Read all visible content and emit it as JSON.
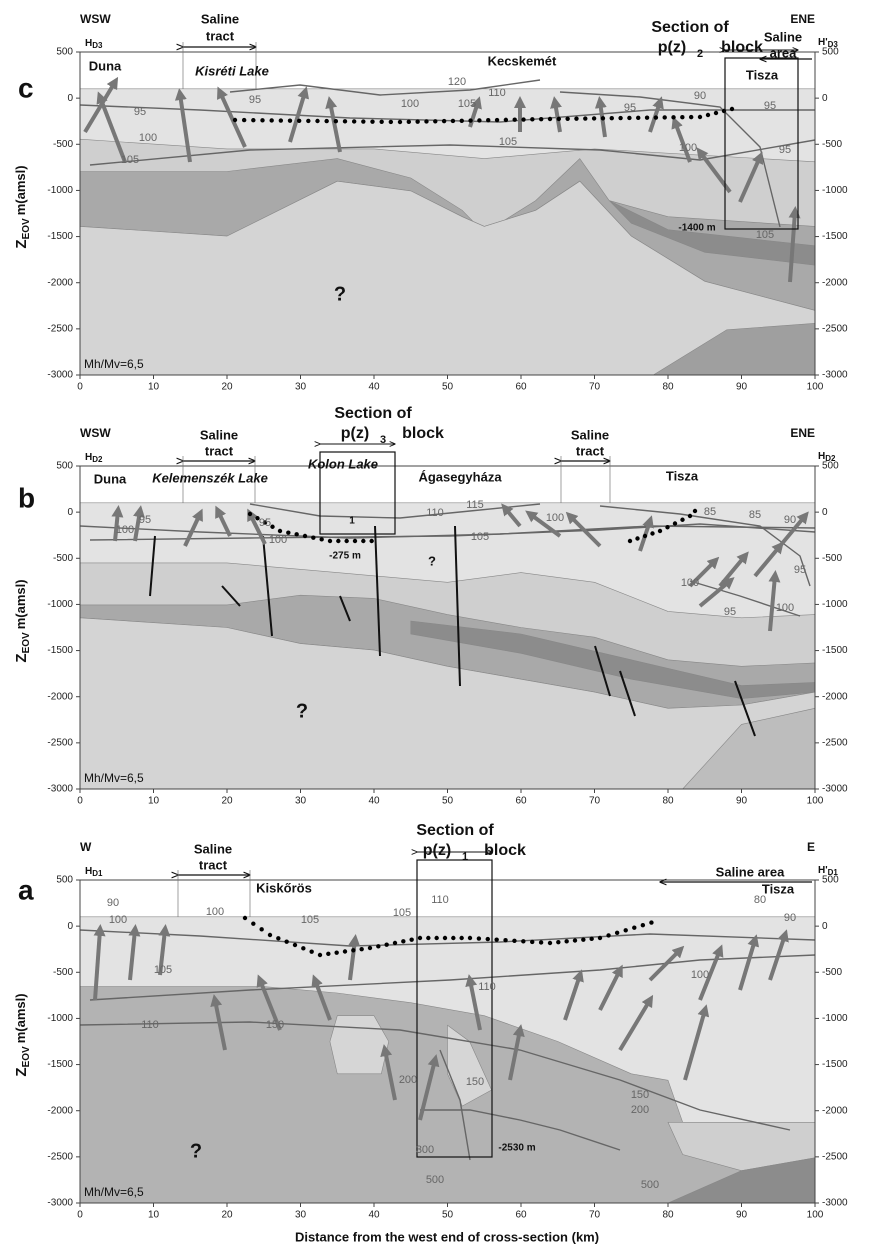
{
  "axes": {
    "xlim": [
      0,
      100
    ],
    "xticks": [
      0,
      10,
      20,
      30,
      40,
      50,
      60,
      70,
      80,
      90,
      100
    ],
    "ylim": [
      -3000,
      500
    ],
    "yticks": [
      -3000,
      -2500,
      -2000,
      -1500,
      -1000,
      -500,
      0,
      500
    ],
    "x_label": "Distance from the west end of cross-section (km)",
    "y_label": {
      "main": "Z",
      "sub": "EOV",
      "unit": "m(amsl)"
    }
  },
  "panels": [
    {
      "letter": "c",
      "left_end": "WSW",
      "right_end": "ENE",
      "left_h": {
        "main": "H",
        "sub": "D3"
      },
      "right_h": {
        "main": "H'",
        "sub": "D3"
      },
      "ratio": "Mh/Mv=6,5",
      "question": "?",
      "annotations": [
        "Duna",
        "Saline",
        "tract",
        "Kisréti Lake",
        "Kecskemét",
        "Section of",
        "p(z)",
        "2",
        "block",
        "Saline",
        "area",
        "Tisza",
        "-1400 m"
      ],
      "contours": [
        120,
        110,
        105,
        100,
        95,
        95,
        100,
        105,
        105,
        100,
        95,
        95,
        90,
        105,
        95
      ]
    },
    {
      "letter": "b",
      "left_end": "WSW",
      "right_end": "ENE",
      "left_h": {
        "main": "H",
        "sub": "D2"
      },
      "right_h": {
        "main": "H",
        "sub": "D2"
      },
      "ratio": "Mh/Mv=6,5",
      "question": "?",
      "annotations": [
        "Duna",
        "Saline",
        "tract",
        "Kelemenszék Lake",
        "Section of",
        "p(z)",
        "3",
        "block",
        "Kolon Lake",
        "Ágasegyháza",
        "Saline",
        "tract",
        "Tisza",
        "1",
        "-275 m",
        "?"
      ],
      "contours": [
        95,
        100,
        95,
        100,
        110,
        115,
        105,
        100,
        85,
        90,
        85,
        95,
        100,
        95,
        100
      ]
    },
    {
      "letter": "a",
      "left_end": "W",
      "right_end": "E",
      "left_h": {
        "main": "H",
        "sub": "D1"
      },
      "right_h": {
        "main": "H'",
        "sub": "D1"
      },
      "ratio": "Mh/Mv=6,5",
      "question": "?",
      "annotations": [
        "Saline",
        "tract",
        "Section of",
        "p(z)",
        "1",
        "block",
        "Kiskőrös",
        "Saline area",
        "Tisza",
        "-2530 m"
      ],
      "contours": [
        90,
        100,
        100,
        105,
        105,
        110,
        105,
        110,
        150,
        200,
        110,
        150,
        300,
        500,
        150,
        200,
        500,
        80,
        90,
        100
      ]
    }
  ]
}
